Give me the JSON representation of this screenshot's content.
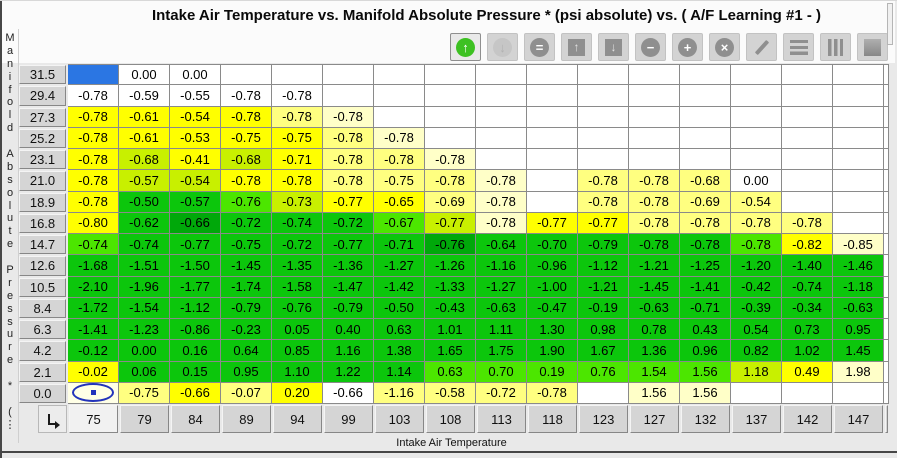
{
  "window": {
    "title": "Intake Air Temperature vs. Manifold Absolute Pressure * (psi absolute) vs. ( A/F Learning #1 -  )"
  },
  "toolbar": {
    "buttons": [
      {
        "name": "circle-up-arrow-button",
        "icon": "green-circle-up-arrow-icon",
        "style": "circle green",
        "glyph": "↑",
        "state": "active"
      },
      {
        "name": "circle-down-arrow-button",
        "icon": "gray-circle-down-arrow-icon",
        "style": "circle dim",
        "glyph": "↓",
        "state": "disabled"
      },
      {
        "name": "circle-equals-button",
        "icon": "circle-equals-icon",
        "style": "circle",
        "glyph": "=",
        "state": "normal"
      },
      {
        "name": "square-up-arrow-button",
        "icon": "square-up-arrow-icon",
        "style": "squareic",
        "glyph": "↑",
        "state": "normal"
      },
      {
        "name": "square-down-arrow-button",
        "icon": "square-down-arrow-icon",
        "style": "squareic",
        "glyph": "↓",
        "state": "normal"
      },
      {
        "name": "circle-minus-button",
        "icon": "circle-minus-icon",
        "style": "circle",
        "glyph": "−",
        "state": "normal"
      },
      {
        "name": "circle-plus-button",
        "icon": "circle-plus-icon",
        "style": "circle",
        "glyph": "+",
        "state": "normal"
      },
      {
        "name": "circle-x-button",
        "icon": "circle-x-icon",
        "style": "circle",
        "glyph": "×",
        "state": "normal"
      },
      {
        "name": "edit-pencil-button",
        "icon": "pencil-icon",
        "style": "pencil",
        "glyph": "",
        "state": "normal"
      },
      {
        "name": "horizontal-bars-button",
        "icon": "horizontal-bars-icon",
        "style": "hbars",
        "glyph": "",
        "state": "normal"
      },
      {
        "name": "vertical-bars-button",
        "icon": "vertical-bars-icon",
        "style": "vbars",
        "glyph": "",
        "state": "normal"
      },
      {
        "name": "filled-square-button",
        "icon": "filled-square-icon",
        "style": "solidsq",
        "glyph": "",
        "state": "normal"
      }
    ]
  },
  "table": {
    "y_axis_label": "Manifold Absolute Pressure * (",
    "y_axis_overflow": "⋮",
    "x_axis_label": "Intake Air Temperature",
    "columns": [
      "75",
      "79",
      "84",
      "89",
      "94",
      "99",
      "103",
      "108",
      "113",
      "118",
      "123",
      "127",
      "132",
      "137",
      "142",
      "147"
    ],
    "rows": [
      "31.5",
      "29.4",
      "27.3",
      "25.2",
      "23.1",
      "21.0",
      "18.9",
      "16.8",
      "14.7",
      "12.6",
      "10.5",
      "8.4",
      "6.3",
      "4.2",
      "2.1",
      "0.0"
    ],
    "selected_column": "75",
    "selected_row": "0.0",
    "cells": [
      [
        [
          "",
          "b"
        ],
        [
          "0.00",
          "w"
        ],
        [
          "0.00",
          "w"
        ],
        [
          "",
          "w"
        ],
        [
          "",
          "w"
        ],
        [
          "",
          "w"
        ],
        [
          "",
          "w"
        ],
        [
          "",
          "w"
        ],
        [
          "",
          "w"
        ],
        [
          "",
          "w"
        ],
        [
          "",
          "w"
        ],
        [
          "",
          "w"
        ],
        [
          "",
          "w"
        ],
        [
          "",
          "w"
        ],
        [
          "",
          "w"
        ],
        [
          "",
          "w"
        ]
      ],
      [
        [
          "-0.78",
          "w"
        ],
        [
          "-0.59",
          "w"
        ],
        [
          "-0.55",
          "w"
        ],
        [
          "-0.78",
          "w"
        ],
        [
          "-0.78",
          "w"
        ],
        [
          "",
          "w"
        ],
        [
          "",
          "w"
        ],
        [
          "",
          "w"
        ],
        [
          "",
          "w"
        ],
        [
          "",
          "w"
        ],
        [
          "",
          "w"
        ],
        [
          "",
          "w"
        ],
        [
          "",
          "w"
        ],
        [
          "",
          "w"
        ],
        [
          "",
          "w"
        ],
        [
          "",
          "w"
        ]
      ],
      [
        [
          "-0.78",
          "y"
        ],
        [
          "-0.61",
          "y"
        ],
        [
          "-0.54",
          "y"
        ],
        [
          "-0.78",
          "y"
        ],
        [
          "-0.78",
          "p"
        ],
        [
          "-0.78",
          "c"
        ],
        [
          "",
          "w"
        ],
        [
          "",
          "w"
        ],
        [
          "",
          "w"
        ],
        [
          "",
          "w"
        ],
        [
          "",
          "w"
        ],
        [
          "",
          "w"
        ],
        [
          "",
          "w"
        ],
        [
          "",
          "w"
        ],
        [
          "",
          "w"
        ],
        [
          "",
          "w"
        ]
      ],
      [
        [
          "-0.78",
          "y"
        ],
        [
          "-0.61",
          "y"
        ],
        [
          "-0.53",
          "y"
        ],
        [
          "-0.75",
          "y"
        ],
        [
          "-0.75",
          "y"
        ],
        [
          "-0.78",
          "p"
        ],
        [
          "-0.78",
          "c"
        ],
        [
          "",
          "w"
        ],
        [
          "",
          "w"
        ],
        [
          "",
          "w"
        ],
        [
          "",
          "w"
        ],
        [
          "",
          "w"
        ],
        [
          "",
          "w"
        ],
        [
          "",
          "w"
        ],
        [
          "",
          "w"
        ],
        [
          "",
          "w"
        ]
      ],
      [
        [
          "-0.78",
          "y"
        ],
        [
          "-0.68",
          "yg"
        ],
        [
          "-0.41",
          "y"
        ],
        [
          "-0.68",
          "yg"
        ],
        [
          "-0.71",
          "y"
        ],
        [
          "-0.78",
          "p"
        ],
        [
          "-0.78",
          "p"
        ],
        [
          "-0.78",
          "c"
        ],
        [
          "",
          "w"
        ],
        [
          "",
          "w"
        ],
        [
          "",
          "w"
        ],
        [
          "",
          "w"
        ],
        [
          "",
          "w"
        ],
        [
          "",
          "w"
        ],
        [
          "",
          "w"
        ],
        [
          "",
          "w"
        ]
      ],
      [
        [
          "-0.78",
          "y"
        ],
        [
          "-0.57",
          "yg"
        ],
        [
          "-0.54",
          "yg"
        ],
        [
          "-0.78",
          "y"
        ],
        [
          "-0.78",
          "y"
        ],
        [
          "-0.78",
          "p"
        ],
        [
          "-0.75",
          "p"
        ],
        [
          "-0.78",
          "p"
        ],
        [
          "-0.78",
          "c"
        ],
        [
          "",
          "w"
        ],
        [
          "-0.78",
          "p"
        ],
        [
          "-0.78",
          "p"
        ],
        [
          "-0.68",
          "p"
        ],
        [
          "0.00",
          "w"
        ],
        [
          "",
          "w"
        ],
        [
          "",
          "w"
        ]
      ],
      [
        [
          "-0.78",
          "y"
        ],
        [
          "-0.50",
          "g"
        ],
        [
          "-0.57",
          "g"
        ],
        [
          "-0.76",
          "lg"
        ],
        [
          "-0.73",
          "yg"
        ],
        [
          "-0.77",
          "y"
        ],
        [
          "-0.65",
          "y"
        ],
        [
          "-0.69",
          "p"
        ],
        [
          "-0.78",
          "c"
        ],
        [
          "",
          "w"
        ],
        [
          "-0.78",
          "p"
        ],
        [
          "-0.78",
          "p"
        ],
        [
          "-0.69",
          "p"
        ],
        [
          "-0.54",
          "p"
        ],
        [
          "",
          "w"
        ],
        [
          "",
          "w"
        ]
      ],
      [
        [
          "-0.80",
          "y"
        ],
        [
          "-0.62",
          "g"
        ],
        [
          "-0.66",
          "dg"
        ],
        [
          "-0.72",
          "g"
        ],
        [
          "-0.74",
          "g"
        ],
        [
          "-0.72",
          "g"
        ],
        [
          "-0.67",
          "lg"
        ],
        [
          "-0.77",
          "yg"
        ],
        [
          "-0.78",
          "c"
        ],
        [
          "-0.77",
          "y"
        ],
        [
          "-0.77",
          "y"
        ],
        [
          "-0.78",
          "p"
        ],
        [
          "-0.78",
          "p"
        ],
        [
          "-0.78",
          "p"
        ],
        [
          "-0.78",
          "p"
        ],
        [
          "",
          "w"
        ]
      ],
      [
        [
          "-0.74",
          "lg"
        ],
        [
          "-0.74",
          "g"
        ],
        [
          "-0.77",
          "g"
        ],
        [
          "-0.75",
          "g"
        ],
        [
          "-0.72",
          "g"
        ],
        [
          "-0.77",
          "g"
        ],
        [
          "-0.71",
          "g"
        ],
        [
          "-0.76",
          "dg"
        ],
        [
          "-0.64",
          "g"
        ],
        [
          "-0.70",
          "g"
        ],
        [
          "-0.79",
          "g"
        ],
        [
          "-0.78",
          "g"
        ],
        [
          "-0.78",
          "g"
        ],
        [
          "-0.78",
          "lg"
        ],
        [
          "-0.82",
          "y"
        ],
        [
          "-0.85",
          "c"
        ]
      ],
      [
        [
          "-1.68",
          "g"
        ],
        [
          "-1.51",
          "g"
        ],
        [
          "-1.50",
          "g"
        ],
        [
          "-1.45",
          "g"
        ],
        [
          "-1.35",
          "g"
        ],
        [
          "-1.36",
          "g"
        ],
        [
          "-1.27",
          "g"
        ],
        [
          "-1.26",
          "g"
        ],
        [
          "-1.16",
          "g"
        ],
        [
          "-0.96",
          "g"
        ],
        [
          "-1.12",
          "g"
        ],
        [
          "-1.21",
          "g"
        ],
        [
          "-1.25",
          "g"
        ],
        [
          "-1.20",
          "g"
        ],
        [
          "-1.40",
          "g"
        ],
        [
          "-1.46",
          "g"
        ]
      ],
      [
        [
          "-2.10",
          "g"
        ],
        [
          "-1.96",
          "g"
        ],
        [
          "-1.77",
          "g"
        ],
        [
          "-1.74",
          "g"
        ],
        [
          "-1.58",
          "g"
        ],
        [
          "-1.47",
          "g"
        ],
        [
          "-1.42",
          "g"
        ],
        [
          "-1.33",
          "g"
        ],
        [
          "-1.27",
          "g"
        ],
        [
          "-1.00",
          "g"
        ],
        [
          "-1.21",
          "g"
        ],
        [
          "-1.45",
          "g"
        ],
        [
          "-1.41",
          "g"
        ],
        [
          "-0.42",
          "g"
        ],
        [
          "-0.74",
          "g"
        ],
        [
          "-1.18",
          "g"
        ]
      ],
      [
        [
          "-1.72",
          "g"
        ],
        [
          "-1.54",
          "g"
        ],
        [
          "-1.12",
          "g"
        ],
        [
          "-0.79",
          "g"
        ],
        [
          "-0.76",
          "g"
        ],
        [
          "-0.79",
          "g"
        ],
        [
          "-0.50",
          "g"
        ],
        [
          "-0.43",
          "g"
        ],
        [
          "-0.63",
          "g"
        ],
        [
          "-0.47",
          "g"
        ],
        [
          "-0.19",
          "g"
        ],
        [
          "-0.63",
          "g"
        ],
        [
          "-0.71",
          "g"
        ],
        [
          "-0.39",
          "g"
        ],
        [
          "-0.34",
          "g"
        ],
        [
          "-0.63",
          "g"
        ]
      ],
      [
        [
          "-1.41",
          "g"
        ],
        [
          "-1.23",
          "g"
        ],
        [
          "-0.86",
          "g"
        ],
        [
          "-0.23",
          "g"
        ],
        [
          "0.05",
          "g"
        ],
        [
          "0.40",
          "g"
        ],
        [
          "0.63",
          "g"
        ],
        [
          "1.01",
          "g"
        ],
        [
          "1.11",
          "g"
        ],
        [
          "1.30",
          "g"
        ],
        [
          "0.98",
          "g"
        ],
        [
          "0.78",
          "g"
        ],
        [
          "0.43",
          "g"
        ],
        [
          "0.54",
          "g"
        ],
        [
          "0.73",
          "g"
        ],
        [
          "0.95",
          "g"
        ]
      ],
      [
        [
          "-0.12",
          "g"
        ],
        [
          "0.00",
          "g"
        ],
        [
          "0.16",
          "g"
        ],
        [
          "0.64",
          "g"
        ],
        [
          "0.85",
          "g"
        ],
        [
          "1.16",
          "g"
        ],
        [
          "1.38",
          "g"
        ],
        [
          "1.65",
          "g"
        ],
        [
          "1.75",
          "g"
        ],
        [
          "1.90",
          "g"
        ],
        [
          "1.67",
          "g"
        ],
        [
          "1.36",
          "g"
        ],
        [
          "0.96",
          "g"
        ],
        [
          "0.82",
          "g"
        ],
        [
          "1.02",
          "g"
        ],
        [
          "1.45",
          "g"
        ]
      ],
      [
        [
          "-0.02",
          "y"
        ],
        [
          "0.06",
          "g"
        ],
        [
          "0.15",
          "g"
        ],
        [
          "0.95",
          "g"
        ],
        [
          "1.10",
          "g"
        ],
        [
          "1.22",
          "g"
        ],
        [
          "1.14",
          "g"
        ],
        [
          "0.63",
          "lg"
        ],
        [
          "0.70",
          "lg"
        ],
        [
          "0.19",
          "lg"
        ],
        [
          "0.76",
          "lg"
        ],
        [
          "1.54",
          "lg"
        ],
        [
          "1.56",
          "lg"
        ],
        [
          "1.18",
          "yg"
        ],
        [
          "0.49",
          "y"
        ],
        [
          "1.98",
          "c"
        ]
      ],
      [
        [
          "",
          "sel"
        ],
        [
          "-0.75",
          "p"
        ],
        [
          "-0.66",
          "y"
        ],
        [
          "-0.07",
          "p"
        ],
        [
          "0.20",
          "y"
        ],
        [
          "-0.66",
          "w"
        ],
        [
          "-1.16",
          "p"
        ],
        [
          "-0.58",
          "p"
        ],
        [
          "-0.72",
          "p"
        ],
        [
          "-0.78",
          "p"
        ],
        [
          "",
          "w"
        ],
        [
          "1.56",
          "c"
        ],
        [
          "1.56",
          "c"
        ],
        [
          "",
          "w"
        ],
        [
          "",
          "w"
        ],
        [
          "",
          "w"
        ]
      ]
    ]
  },
  "colors": {
    "selection_blue": "#2B76E3",
    "marker_blue": "#2233BB",
    "yellow": "#FFFF00",
    "pale_yellow": "#FFFF80",
    "cream": "#FFFFC8",
    "yellow_green": "#C8F000",
    "light_green": "#4CE600",
    "green": "#0CC60C",
    "dark_green": "#00A80A",
    "toolbar_green": "#3DC122",
    "header_gray": "#D5D5D5",
    "header_highlight": "#F1F1F1"
  }
}
